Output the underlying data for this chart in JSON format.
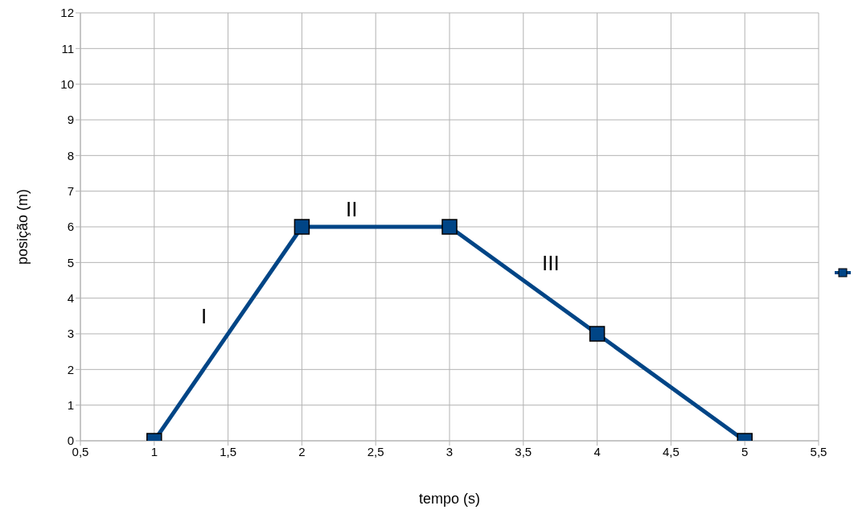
{
  "chart_data": {
    "type": "line",
    "xlabel": "tempo (s)",
    "ylabel": "posição (m)",
    "x": [
      1,
      2,
      3,
      4,
      5
    ],
    "series": [
      {
        "color": "#004586",
        "values": [
          0,
          6,
          6,
          3,
          0
        ]
      }
    ],
    "xlim": [
      0.5,
      5.5
    ],
    "xticks": [
      {
        "value": 0.5,
        "label": "0,5"
      },
      1,
      {
        "value": 1.5,
        "label": "1,5"
      },
      2,
      {
        "value": 2.5,
        "label": "2,5"
      },
      3,
      {
        "value": 3.5,
        "label": "3,5"
      },
      4,
      {
        "value": 4.5,
        "label": "4,5"
      },
      5,
      {
        "value": 5.5,
        "label": "5,5"
      }
    ],
    "ylim": [
      0,
      12
    ],
    "yticks": [
      0,
      1,
      2,
      3,
      4,
      5,
      6,
      7,
      8,
      9,
      10,
      11,
      12
    ],
    "grid": true,
    "marker": "square",
    "line_style": "solid",
    "annotations": [
      "I",
      "II",
      "III"
    ]
  }
}
